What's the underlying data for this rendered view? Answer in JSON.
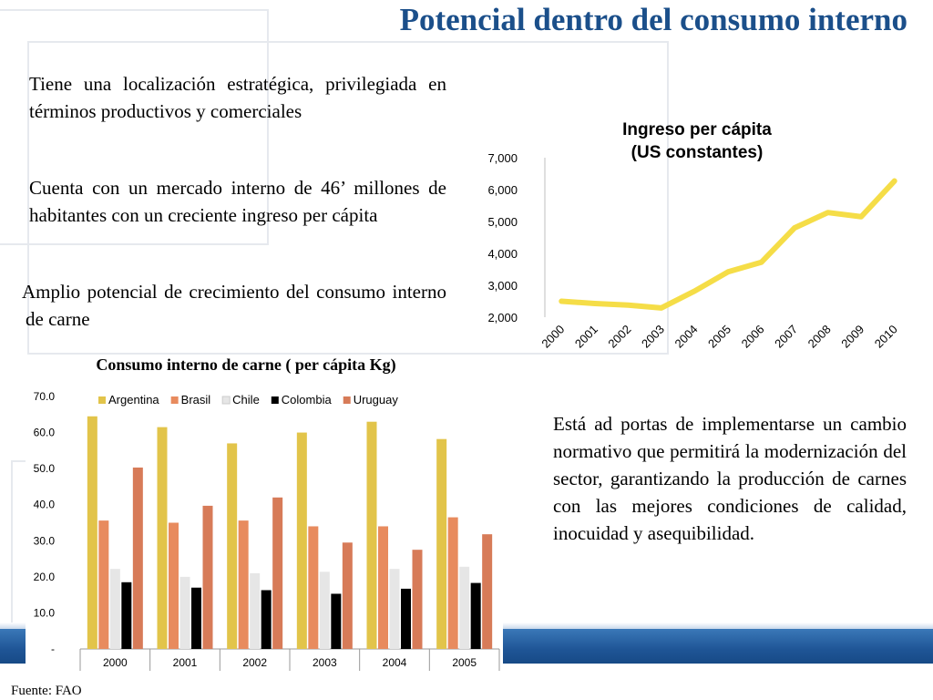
{
  "slide": {
    "title": "Potencial dentro del consumo interno",
    "paragraphs": [
      "Tiene una localización estratégica, privilegiada en términos productivos y comerciales",
      "Cuenta con un mercado interno de 46’ millones de habitantes con un creciente ingreso per cápita",
      "Amplio potencial de crecimiento del consumo interno de carne"
    ],
    "right_paragraph": "Está ad portas de implementarse un cambio normativo que permitirá la modernización del sector, garantizando la producción de carnes con las mejores condiciones de calidad, inocuidad y asequibilidad.",
    "source": "Fuente: FAO"
  },
  "chart_data": [
    {
      "type": "line",
      "title_line1": "Ingreso per cápita",
      "title_line2": "(US constantes)",
      "x": [
        "2000",
        "2001",
        "2002",
        "2003",
        "2004",
        "2005",
        "2006",
        "2007",
        "2008",
        "2009",
        "2010"
      ],
      "values": [
        2500,
        2430,
        2380,
        2290,
        2820,
        3420,
        3720,
        4800,
        5280,
        5150,
        6270
      ],
      "ylim": [
        2000,
        7000
      ],
      "yticks": [
        "2,000",
        "3,000",
        "4,000",
        "5,000",
        "6,000",
        "7,000"
      ],
      "color": "#f5dd47",
      "grid": false
    },
    {
      "type": "bar",
      "title": "Consumo interno de carne ( per cápita Kg)",
      "categories": [
        "2000",
        "2001",
        "2002",
        "2003",
        "2004",
        "2005"
      ],
      "series": [
        {
          "name": "Argentina",
          "color": "#e2c44a",
          "values": [
            64.5,
            61.5,
            57.0,
            60.0,
            63.0,
            58.2
          ]
        },
        {
          "name": "Brasil",
          "color": "#e88b5e",
          "values": [
            35.6,
            35.0,
            35.6,
            34.0,
            34.0,
            36.5
          ]
        },
        {
          "name": "Chile",
          "color": "#e6e6e6",
          "values": [
            22.2,
            20.0,
            21.0,
            21.4,
            22.2,
            22.8
          ]
        },
        {
          "name": "Colombia",
          "color": "#000000",
          "values": [
            18.5,
            17.0,
            16.3,
            15.3,
            16.7,
            18.3
          ]
        },
        {
          "name": "Uruguay",
          "color": "#d77b58",
          "values": [
            50.3,
            39.7,
            42.0,
            29.5,
            27.5,
            31.8
          ]
        }
      ],
      "ylim": [
        0,
        70
      ],
      "yticks": [
        "-",
        "10.0",
        "20.0",
        "30.0",
        "40.0",
        "50.0",
        "60.0",
        "70.0"
      ],
      "legend": "top"
    }
  ]
}
